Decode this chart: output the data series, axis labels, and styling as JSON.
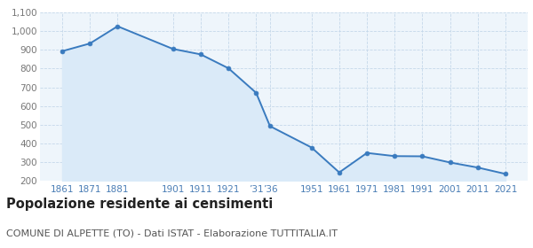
{
  "years": [
    1861,
    1871,
    1881,
    1901,
    1911,
    1921,
    1931,
    1936,
    1951,
    1961,
    1971,
    1981,
    1991,
    2001,
    2011,
    2021
  ],
  "population": [
    893,
    934,
    1026,
    905,
    876,
    802,
    671,
    493,
    379,
    246,
    350,
    333,
    332,
    299,
    272,
    238
  ],
  "ylim": [
    200,
    1100
  ],
  "yticks": [
    200,
    300,
    400,
    500,
    600,
    700,
    800,
    900,
    1000,
    1100
  ],
  "line_color": "#3a7bbf",
  "fill_color": "#daeaf8",
  "marker_color": "#3a7bbf",
  "bg_color": "#eef5fb",
  "grid_color": "#c5d8ea",
  "title": "Popolazione residente ai censimenti",
  "subtitle": "COMUNE DI ALPETTE (TO) - Dati ISTAT - Elaborazione TUTTITALIA.IT",
  "title_fontsize": 10.5,
  "subtitle_fontsize": 8.0,
  "tick_label_color": "#4a7db5",
  "ytick_label_color": "#777777"
}
